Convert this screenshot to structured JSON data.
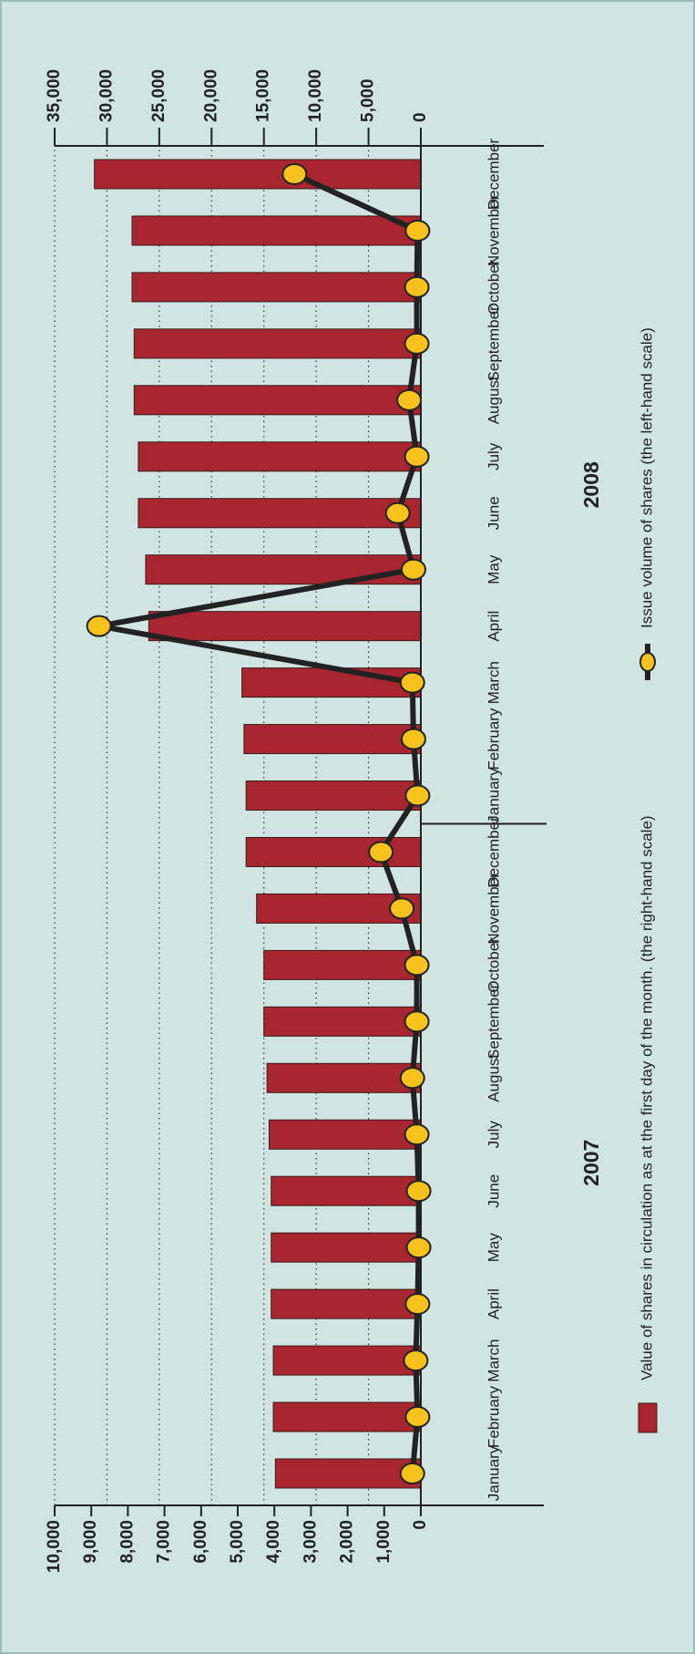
{
  "chart_data": {
    "type": "bar",
    "categories": [
      "January",
      "February",
      "March",
      "April",
      "May",
      "June",
      "July",
      "August",
      "September",
      "October",
      "November",
      "December",
      "January",
      "February",
      "March",
      "April",
      "May",
      "June",
      "July",
      "August",
      "September",
      "October",
      "November",
      "December"
    ],
    "groups": [
      {
        "label": "2007",
        "start": 0,
        "end": 11
      },
      {
        "label": "2008",
        "start": 12,
        "end": 23
      }
    ],
    "series": [
      {
        "name": "Value of shares in circulation as at the first day of the month. (the right-hand scale)",
        "type": "bar",
        "axis": "y2",
        "color": "#a8262f",
        "values": [
          13900,
          14100,
          14100,
          14300,
          14300,
          14300,
          14500,
          14700,
          15000,
          15000,
          15700,
          16700,
          16700,
          16900,
          17100,
          26000,
          26300,
          27000,
          27000,
          27400,
          27400,
          27600,
          27600,
          31200
        ]
      },
      {
        "name": "Issue volume of shares (the left-hand scale)",
        "type": "line",
        "color": "#222222",
        "marker_color": "#f7c21c",
        "values": [
          230,
          90,
          140,
          90,
          60,
          60,
          110,
          230,
          110,
          110,
          520,
          1090,
          90,
          200,
          230,
          8790,
          200,
          630,
          110,
          320,
          110,
          110,
          90,
          3450
        ]
      }
    ],
    "ylim": [
      0,
      10000
    ],
    "yticks": [
      0,
      {
        "value": 1000,
        "label": "1,000"
      },
      {
        "value": 2000,
        "label": "2,000"
      },
      {
        "value": 3000,
        "label": "3,000"
      },
      {
        "value": 4000,
        "label": "4,000"
      },
      {
        "value": 5000,
        "label": "5,000"
      },
      {
        "value": 6000,
        "label": "6,000"
      },
      {
        "value": 7000,
        "label": "7,000"
      },
      {
        "value": 8000,
        "label": "8,000"
      },
      {
        "value": 9000,
        "label": "9,000"
      },
      {
        "value": 10000,
        "label": "10,000"
      }
    ],
    "y2lim": [
      0,
      35000
    ],
    "y2ticks": [
      0,
      {
        "value": 5000,
        "label": "5,000"
      },
      {
        "value": 10000,
        "label": "10,000"
      },
      {
        "value": 15000,
        "label": "15,000"
      },
      {
        "value": 20000,
        "label": "20,000"
      },
      {
        "value": 25000,
        "label": "25,000"
      },
      {
        "value": 30000,
        "label": "30,000"
      },
      {
        "value": 35000,
        "label": "35,000"
      }
    ],
    "grid": true
  }
}
